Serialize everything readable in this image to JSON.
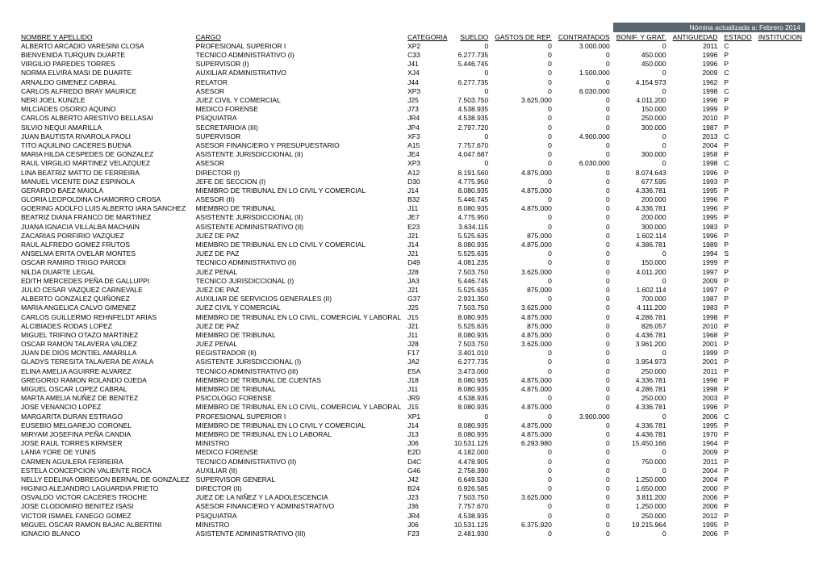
{
  "banner_prefix": "Nómina actualizada a:",
  "banner_month": "Febrero 2014",
  "columns": [
    "NOMBRE Y APELLIDO",
    "CARGO",
    "CATEGORIA",
    "SUELDO",
    "GASTOS DE REP.",
    "CONTRATADOS",
    "BONIF. Y GRAT.",
    "ANTIGUEDAD",
    "ESTADO",
    "INSTITUCION"
  ],
  "col_align": [
    "l",
    "l",
    "l",
    "r",
    "r",
    "r",
    "r",
    "r",
    "l",
    "l"
  ],
  "rows": [
    [
      "ALBERTO ARCADIO VARESINI CLOSA",
      "PROFESIONAL SUPERIOR I",
      "XP2",
      "0",
      "0",
      "3.000.000",
      "0",
      "2011",
      "C",
      ""
    ],
    [
      "BIENVENIDA TURQUIN DUARTE",
      "TECNICO ADMINISTRATIVO (I)",
      "C33",
      "6.277.735",
      "0",
      "0",
      "450.000",
      "1996",
      "P",
      ""
    ],
    [
      "VIRGILIO PAREDES TORRES",
      "SUPERVISOR (I)",
      "J41",
      "5.446.745",
      "0",
      "0",
      "450.000",
      "1996",
      "P",
      ""
    ],
    [
      "NORMA ELVIRA MASI DE DUARTE",
      "AUXILIAR ADMINISTRATIVO",
      "XJ4",
      "0",
      "0",
      "1.500.000",
      "0",
      "2009",
      "C",
      ""
    ],
    [
      "ARNALDO GIMENEZ CABRAL",
      "RELATOR",
      "J44",
      "6.277.735",
      "0",
      "0",
      "4.154.973",
      "1962",
      "P",
      ""
    ],
    [
      "CARLOS ALFREDO BRAY MAURICE",
      "ASESOR",
      "XP3",
      "0",
      "0",
      "6.030.000",
      "0",
      "1998",
      "C",
      ""
    ],
    [
      "NERI JOEL KUNZLE",
      "JUEZ CIVIL Y COMERCIAL",
      "J25",
      "7.503.750",
      "3.625.000",
      "0",
      "4.011.200",
      "1996",
      "P",
      ""
    ],
    [
      "MILCIADES OSORIO AQUINO",
      "MEDICO FORENSE",
      "J73",
      "4.538.935",
      "0",
      "0",
      "150.000",
      "1999",
      "P",
      ""
    ],
    [
      "CARLOS ALBERTO ARESTIVO BELLASAI",
      "PSIQUIATRA",
      "JR4",
      "4.538.935",
      "0",
      "0",
      "250.000",
      "2010",
      "P",
      ""
    ],
    [
      "SILVIO NEQUI AMARILLA",
      "SECRETARIO/A  (III)",
      "JP4",
      "2.797.720",
      "0",
      "0",
      "300.000",
      "1987",
      "P",
      ""
    ],
    [
      "JUAN BAUTISTA RIVAROLA PAOLI",
      "SUPERVISOR",
      "XF3",
      "0",
      "0",
      "4.900.000",
      "0",
      "2013",
      "C",
      ""
    ],
    [
      "TITO AQUILINO CACERES BUENA",
      "ASESOR FINANCIERO Y PRESUPUESTARIO",
      "A15",
      "7.757.670",
      "0",
      "0",
      "0",
      "2004",
      "P",
      ""
    ],
    [
      "MARIA HILDA CESPEDES DE GONZALEZ",
      "ASISTENTE JURISDICCIONAL (II)",
      "JE4",
      "4.047.687",
      "0",
      "0",
      "300.000",
      "1958",
      "P",
      ""
    ],
    [
      "RAUL VIRGILIO MARTINEZ VELAZQUEZ",
      "ASESOR",
      "XP3",
      "0",
      "0",
      "6.030.000",
      "0",
      "1998",
      "C",
      ""
    ],
    [
      "LINA BEATRIZ MATTO DE FERREIRA",
      "DIRECTOR (I)",
      "A12",
      "8.191.560",
      "4.875.000",
      "0",
      "8.074.643",
      "1996",
      "P",
      ""
    ],
    [
      "MANUEL VICENTE DIAZ ESPINOLA",
      "JEFE DE SECCION (I)",
      "D30",
      "4.775.950",
      "0",
      "0",
      "677.595",
      "1993",
      "P",
      ""
    ],
    [
      "GERARDO BAEZ MAIOLA",
      "MIEMBRO DE TRIBUNAL EN LO CIVIL Y COMERCIAL",
      "J14",
      "8.080.935",
      "4.875.000",
      "0",
      "4.336.781",
      "1995",
      "P",
      ""
    ],
    [
      "GLORIA LEOPOLDINA CHAMORRO CROSA",
      "ASESOR (II)",
      "B32",
      "5.446.745",
      "0",
      "0",
      "200.000",
      "1996",
      "P",
      ""
    ],
    [
      "GOERING ADOLFO LUIS ALBERTO IARA SANCHEZ",
      "MIEMBRO DE TRIBUNAL",
      "J11",
      "8.080.935",
      "4.875.000",
      "0",
      "4.336.781",
      "1996",
      "P",
      ""
    ],
    [
      "BEATRIZ DIANA FRANCO DE MARTINEZ",
      "ASISTENTE JURISDICCIONAL (II)",
      "JE7",
      "4.775.950",
      "0",
      "0",
      "200.000",
      "1995",
      "P",
      ""
    ],
    [
      "JUANA IGNACIA VILLALBA MACHAIN",
      "ASISTENTE ADMINISTRATIVO (II)",
      "E23",
      "3.634.115",
      "0",
      "0",
      "300.000",
      "1983",
      "P",
      ""
    ],
    [
      "ZACARIAS PORFIRIO VAZQUEZ",
      "JUEZ DE  PAZ",
      "J21",
      "5.525.635",
      "875.000",
      "0",
      "1.602.114",
      "1996",
      "P",
      ""
    ],
    [
      "RAUL ALFREDO GOMEZ FRUTOS",
      "MIEMBRO DE TRIBUNAL EN LO CIVIL Y COMERCIAL",
      "J14",
      "8.080.935",
      "4.875.000",
      "0",
      "4.386.781",
      "1989",
      "P",
      ""
    ],
    [
      "ANSELMA ERITA OVELAR MONTES",
      "JUEZ DE PAZ",
      "J21",
      "5.525.635",
      "0",
      "0",
      "0",
      "1994",
      "S",
      ""
    ],
    [
      "OSCAR RAMIRO TRIGO PARODI",
      "TECNICO ADMINISTRATIVO (II)",
      "D49",
      "4.081.235",
      "0",
      "0",
      "150.000",
      "1999",
      "P",
      ""
    ],
    [
      "NILDA DUARTE LEGAL",
      "JUEZ PENAL",
      "J28",
      "7.503.750",
      "3.625.000",
      "0",
      "4.011.200",
      "1997",
      "P",
      ""
    ],
    [
      "EDITH MERCEDES PEÑA DE GALLUPPI",
      "TECNICO JURISDICCIONAL (I)",
      "JA3",
      "5.446.745",
      "0",
      "0",
      "0",
      "2009",
      "P",
      ""
    ],
    [
      "JULIO CESAR VAZQUEZ CARNEVALE",
      "JUEZ DE PAZ",
      "J21",
      "5.525.635",
      "875.000",
      "0",
      "1.602.114",
      "1997",
      "P",
      ""
    ],
    [
      "ALBERTO GONZALEZ QUIÑONEZ",
      "AUXILIAR DE SERVICIOS GENERALES (II)",
      "G37",
      "2.931.350",
      "0",
      "0",
      "700.000",
      "1987",
      "P",
      ""
    ],
    [
      "MARIA ANGELICA CALVO GIMENEZ",
      "JUEZ CIVIL Y COMERCIAL",
      "J25",
      "7.503.750",
      "3.625.000",
      "0",
      "4.111.200",
      "1983",
      "P",
      ""
    ],
    [
      "CARLOS GUILLERMO REHNFELDT ARIAS",
      "MIEMBRO DE TRIBUNAL EN LO CIVIL, COMERCIAL Y LABORAL",
      "J15",
      "8.080.935",
      "4.875.000",
      "0",
      "4.286.781",
      "1998",
      "P",
      ""
    ],
    [
      "ALCIBIADES RODAS LOPEZ",
      "JUEZ DE PAZ",
      "J21",
      "5.525.635",
      "875.000",
      "0",
      "826.057",
      "2010",
      "P",
      ""
    ],
    [
      "MIGUEL TRIFINO OTAZO MARTINEZ",
      "MIEMBRO DE TRIBUNAL",
      "J11",
      "8.080.935",
      "4.875.000",
      "0",
      "4.436.781",
      "1968",
      "P",
      ""
    ],
    [
      "OSCAR RAMON TALAVERA VALDEZ",
      "JUEZ PENAL",
      "J28",
      "7.503.750",
      "3.625.000",
      "0",
      "3.961.200",
      "2001",
      "P",
      ""
    ],
    [
      "JUAN DE DIOS MONTIEL AMARILLA",
      "REGISTRADOR (II)",
      "F17",
      "3.401.010",
      "0",
      "0",
      "0",
      "1999",
      "P",
      ""
    ],
    [
      "GLADYS TERESITA TALAVERA DE AYALA",
      "ASISTENTE JURISDICCIONAL (I)",
      "JA2",
      "6.277.735",
      "0",
      "0",
      "3.954.973",
      "2001",
      "P",
      ""
    ],
    [
      "ELINA AMELIA AGUIRRE ALVAREZ",
      "TECNICO ADMINISTRATIVO (III)",
      "E5A",
      "3.473.000",
      "0",
      "0",
      "250.000",
      "2011",
      "P",
      ""
    ],
    [
      "GREGORIO RAMON ROLANDO OJEDA",
      "MIEMBRO DE TRIBUNAL DE CUENTAS",
      "J18",
      "8.080.935",
      "4.875.000",
      "0",
      "4.336.781",
      "1996",
      "P",
      ""
    ],
    [
      "MIGUEL OSCAR LOPEZ CABRAL",
      "MIEMBRO DE TRIBUNAL",
      "J11",
      "8.080.935",
      "4.875.000",
      "0",
      "4.286.781",
      "1998",
      "P",
      ""
    ],
    [
      "MARTA AMELIA NUÑEZ DE BENITEZ",
      "PSICOLOGO FORENSE",
      "JR9",
      "4.538.935",
      "0",
      "0",
      "250.000",
      "2003",
      "P",
      ""
    ],
    [
      "JOSE VENANCIO LOPEZ",
      "MIEMBRO DE TRIBUNAL EN LO CIVIL, COMERCIAL Y LABORAL",
      "J15",
      "8.080.935",
      "4.875.000",
      "0",
      "4.336.781",
      "1996",
      "P",
      ""
    ],
    [
      "MARGARITA DURAN ESTRAGO",
      "PROFESIONAL SUPERIOR I",
      "XP1",
      "0",
      "0",
      "3.900.000",
      "0",
      "2006",
      "C",
      ""
    ],
    [
      "EUSEBIO MELGAREJO CORONEL",
      "MIEMBRO DE TRIBUNAL EN LO CIVIL Y COMERCIAL",
      "J14",
      "8.080.935",
      "4.875.000",
      "0",
      "4.336.781",
      "1995",
      "P",
      ""
    ],
    [
      "MIRYAM JOSEFINA PEÑA CANDIA",
      "MIEMBRO DE TRIBUNAL EN LO LABORAL",
      "J13",
      "8.080.935",
      "4.875.000",
      "0",
      "4.436.781",
      "1970",
      "P",
      ""
    ],
    [
      "JOSE RAUL TORRES KIRMSER",
      "MINISTRO",
      "J06",
      "10.531.125",
      "6.293.980",
      "0",
      "15.450.166",
      "1964",
      "P",
      ""
    ],
    [
      "LANIA YORE DE YUNIS",
      "MEDICO FORENSE",
      "E2D",
      "4.182.000",
      "0",
      "0",
      "0",
      "2009",
      "P",
      ""
    ],
    [
      "CARMEN AGUILERA FERREIRA",
      "TECNICO ADMINISTRATIVO (II)",
      "D4C",
      "4.478.905",
      "0",
      "0",
      "750.000",
      "2011",
      "P",
      ""
    ],
    [
      "ESTELA CONCEPCION VALIENTE ROCA",
      "AUXILIAR (II)",
      "G46",
      "2.758.390",
      "0",
      "0",
      "0",
      "2004",
      "P",
      ""
    ],
    [
      "NELLY EDELINA OBREGON BERNAL DE GONZALEZ",
      "SUPERVISOR GENERAL",
      "J42",
      "6.649.530",
      "0",
      "0",
      "1.250.000",
      "2004",
      "P",
      ""
    ],
    [
      "HIGINIO ALEJANDRO LAGUARDIA PRIETO",
      "DIRECTOR (II)",
      "B24",
      "6.926.565",
      "0",
      "0",
      "1.650.000",
      "2000",
      "P",
      ""
    ],
    [
      "OSVALDO VICTOR CACERES TROCHE",
      "JUEZ DE LA NIÑEZ Y LA ADOLESCENCIA",
      "J23",
      "7.503.750",
      "3.625.000",
      "0",
      "3.811.200",
      "2006",
      "P",
      ""
    ],
    [
      "JOSE CLODOMIRO BENITEZ ISASI",
      "ASESOR FINANCIERO Y ADMINISTRATIVO",
      "J36",
      "7.757.670",
      "0",
      "0",
      "1.250.000",
      "2006",
      "P",
      ""
    ],
    [
      "VICTOR ISMAEL FANEGO GOMEZ",
      "PSIQUIATRA",
      "JR4",
      "4.538.935",
      "0",
      "0",
      "250.000",
      "2012",
      "P",
      ""
    ],
    [
      "MIGUEL OSCAR RAMON BAJAC ALBERTINI",
      "MINISTRO",
      "J06",
      "10.531.125",
      "6.375.920",
      "0",
      "19.215.964",
      "1995",
      "P",
      ""
    ],
    [
      "IGNACIO BLANCO",
      "ASISTENTE ADMINISTRATIVO (III)",
      "F23",
      "2.481.930",
      "0",
      "0",
      "0",
      "2006",
      "P",
      ""
    ]
  ]
}
